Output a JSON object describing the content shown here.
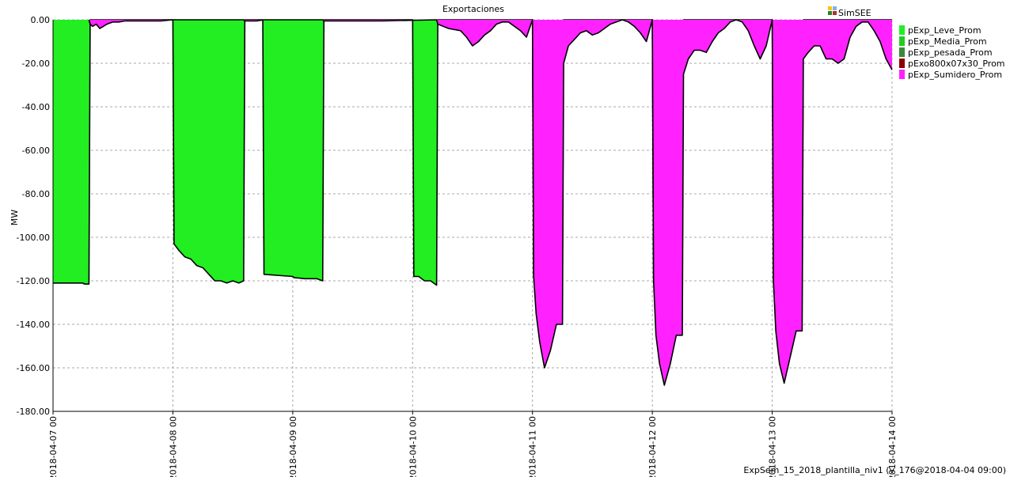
{
  "chart_data": {
    "type": "area",
    "title": "Exportaciones",
    "ylabel": "MW",
    "xlabel": "",
    "brand": "SimSEE",
    "footer": "ExpSem_15_2018_plantilla_niv1 (v_176@2018-04-04 09:00)",
    "ylim": [
      -180,
      0
    ],
    "yticks": [
      0,
      -20,
      -40,
      -60,
      -80,
      -100,
      -120,
      -140,
      -160,
      -180
    ],
    "ytick_labels": [
      "0.00",
      "-20.00",
      "-40.00",
      "-60.00",
      "-80.00",
      "-100.00",
      "-120.00",
      "-140.00",
      "-160.00",
      "-180.00"
    ],
    "xlim": [
      0,
      7
    ],
    "xticks": [
      0,
      1,
      2,
      3,
      4,
      5,
      6,
      7
    ],
    "xtick_labels": [
      "2018-04-07 00",
      "2018-04-08 00",
      "2018-04-09 00",
      "2018-04-10 00",
      "2018-04-11 00",
      "2018-04-12 00",
      "2018-04-13 00",
      "2018-04-14 00"
    ],
    "grid": true,
    "legend_position": "right",
    "colors": {
      "pExp_Leve_Prom": "#22ee22",
      "pExp_Media_Prom": "#22cc22",
      "pExp_pesada_Prom": "#3a8a3a",
      "pExo800x07x30_Prom": "#8b0000",
      "pExp_Sumidero_Prom": "#ff22ff"
    },
    "series": [
      {
        "name": "pExp_Leve_Prom",
        "x": [
          0,
          0.25,
          0.26,
          0.3,
          0.31,
          1.0,
          1.01,
          1.05,
          1.1,
          1.15,
          1.2,
          1.25,
          1.3,
          1.35,
          1.4,
          1.45,
          1.5,
          1.55,
          1.59,
          1.6,
          1.75,
          1.76,
          2.0,
          2.01,
          2.1,
          2.2,
          2.25,
          2.26,
          3.0,
          3.01,
          3.05,
          3.1,
          3.15,
          3.2,
          3.21,
          4.0,
          4.01,
          4.05,
          4.1,
          4.2,
          4.25,
          4.26,
          5.0,
          5.01,
          5.05,
          5.1,
          5.2,
          5.25,
          5.26,
          6.0,
          6.01,
          6.05,
          6.1,
          6.2,
          6.25,
          6.26,
          7.0
        ],
        "values": [
          -121,
          -121,
          -121.5,
          -121.5,
          0,
          0,
          -103,
          -106,
          -109,
          -110,
          -113,
          -114,
          -117,
          -120,
          -120,
          -121,
          -120,
          -121,
          -120,
          0,
          0,
          -117,
          -118,
          -118.5,
          -119,
          -119,
          -120,
          0,
          0,
          -118,
          -118,
          -120,
          -120,
          -122,
          0,
          0,
          -118,
          -118,
          -118.5,
          -119,
          -119,
          0,
          0,
          -119,
          -119,
          -119.5,
          -119,
          -120,
          0,
          0,
          -119,
          -119,
          -120,
          -120,
          -120,
          0,
          0
        ]
      },
      {
        "name": "pExp_Sumidero_Prom",
        "x": [
          0.3,
          0.31,
          0.33,
          0.36,
          0.39,
          0.42,
          0.45,
          0.5,
          0.55,
          0.6,
          0.7,
          0.8,
          0.9,
          1.0,
          1.59,
          1.6,
          1.7,
          1.76,
          2.25,
          2.26,
          2.5,
          2.75,
          3.2,
          3.21,
          3.3,
          3.4,
          3.45,
          3.5,
          3.55,
          3.6,
          3.65,
          3.7,
          3.75,
          3.8,
          3.85,
          3.9,
          3.95,
          4.0,
          4.01,
          4.03,
          4.06,
          4.1,
          4.15,
          4.2,
          4.25,
          4.26,
          4.3,
          4.35,
          4.4,
          4.45,
          4.5,
          4.55,
          4.6,
          4.65,
          4.7,
          4.75,
          4.8,
          4.85,
          4.9,
          4.95,
          5.0,
          5.01,
          5.03,
          5.06,
          5.1,
          5.15,
          5.2,
          5.25,
          5.26,
          5.3,
          5.35,
          5.4,
          5.45,
          5.5,
          5.55,
          5.6,
          5.65,
          5.7,
          5.75,
          5.8,
          5.85,
          5.9,
          5.95,
          6.0,
          6.01,
          6.03,
          6.06,
          6.1,
          6.15,
          6.2,
          6.25,
          6.26,
          6.3,
          6.35,
          6.4,
          6.45,
          6.5,
          6.55,
          6.6,
          6.65,
          6.7,
          6.75,
          6.8,
          6.85,
          6.9,
          6.95,
          7.0
        ],
        "values": [
          0,
          -2,
          -3,
          -2,
          -4,
          -3,
          -2,
          -1,
          -1,
          -0.5,
          -0.5,
          -0.5,
          -0.5,
          0,
          0,
          -0.5,
          -0.5,
          0,
          0,
          -0.5,
          -0.5,
          -0.5,
          0,
          -2,
          -4,
          -5,
          -8,
          -12,
          -10,
          -7,
          -5,
          -2,
          -1,
          -1,
          -3,
          -5,
          -8,
          0,
          -118,
          -135,
          -148,
          -160,
          -152,
          -140,
          -140,
          -20,
          -12,
          -9,
          -6,
          -5,
          -7,
          -6,
          -4,
          -2,
          -1,
          0,
          -1,
          -3,
          -6,
          -10,
          0,
          -120,
          -145,
          -158,
          -168,
          -158,
          -145,
          -145,
          -25,
          -18,
          -14,
          -14,
          -15,
          -10,
          -6,
          -4,
          -1,
          0,
          -1,
          -5,
          -12,
          -18,
          -12,
          0,
          -120,
          -143,
          -158,
          -167,
          -155,
          -143,
          -143,
          -18,
          -15,
          -12,
          -12,
          -18,
          -18,
          -20,
          -18,
          -8,
          -3,
          -1,
          -1,
          -5,
          -10,
          -18,
          -23
        ]
      }
    ]
  }
}
